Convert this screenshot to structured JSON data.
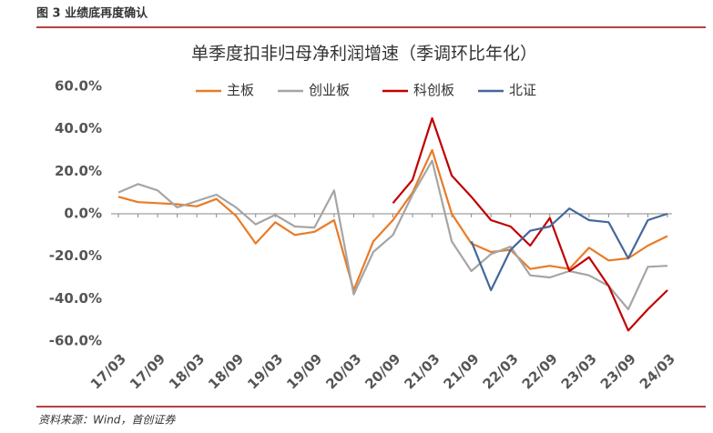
{
  "header": "图 3 业绩底再度确认",
  "source": "资料来源：Wind，首创证券",
  "chart_data": {
    "type": "line",
    "title": "单季度扣非归母净利润增速（季调环比年化）",
    "categories": [
      "17/03",
      null,
      "17/09",
      null,
      "18/03",
      null,
      "18/09",
      null,
      "19/03",
      null,
      "19/09",
      null,
      "20/03",
      null,
      "20/09",
      null,
      "21/03",
      null,
      "21/09",
      null,
      "22/03",
      null,
      "22/09",
      null,
      "23/03",
      null,
      "23/09",
      null,
      "24/03"
    ],
    "series": [
      {
        "name": "主板",
        "color": "#e97b26",
        "values": [
          8,
          5.5,
          5,
          4.5,
          3.5,
          7,
          -1,
          -14,
          -4,
          -10,
          -8.5,
          -3,
          -36,
          -13,
          -3,
          10,
          30,
          0,
          -14,
          -18,
          -17,
          -26,
          -24.5,
          -26,
          -16,
          -22,
          -21,
          -15,
          -10.5
        ]
      },
      {
        "name": "创业板",
        "color": "#a5a5a5",
        "values": [
          10,
          14,
          11,
          3,
          6,
          9,
          3,
          -5,
          -0.5,
          -6,
          -6.5,
          11,
          -38,
          -18,
          -10,
          9,
          25,
          -13,
          -27,
          -19,
          -15.5,
          -29,
          -30,
          -27,
          -29,
          -34,
          -45,
          -25,
          -24.5
        ]
      },
      {
        "name": "科创板",
        "color": "#c00000",
        "values": [
          null,
          null,
          null,
          null,
          null,
          null,
          null,
          null,
          null,
          null,
          null,
          null,
          null,
          null,
          5,
          16,
          45,
          18,
          8,
          -3,
          -6,
          -15,
          -2,
          -27,
          -20.5,
          -34,
          -55,
          -45,
          -36
        ]
      },
      {
        "name": "北证",
        "color": "#44689a",
        "values": [
          null,
          null,
          null,
          null,
          null,
          null,
          null,
          null,
          null,
          null,
          null,
          null,
          null,
          null,
          null,
          null,
          null,
          null,
          -13,
          -36,
          -17,
          -8,
          -6,
          2.5,
          -3,
          -4,
          -21,
          -3,
          0
        ]
      }
    ],
    "ylim": [
      -60,
      60
    ],
    "yticks": [
      {
        "value": -60,
        "label": "-60.0%"
      },
      {
        "value": -40,
        "label": "-40.0%"
      },
      {
        "value": -20,
        "label": "-20.0%"
      },
      {
        "value": 0,
        "label": "0.0%"
      },
      {
        "value": 20,
        "label": "20.0%"
      },
      {
        "value": 40,
        "label": "40.0%"
      },
      {
        "value": 60,
        "label": "60.0%"
      }
    ],
    "legend": "top"
  }
}
